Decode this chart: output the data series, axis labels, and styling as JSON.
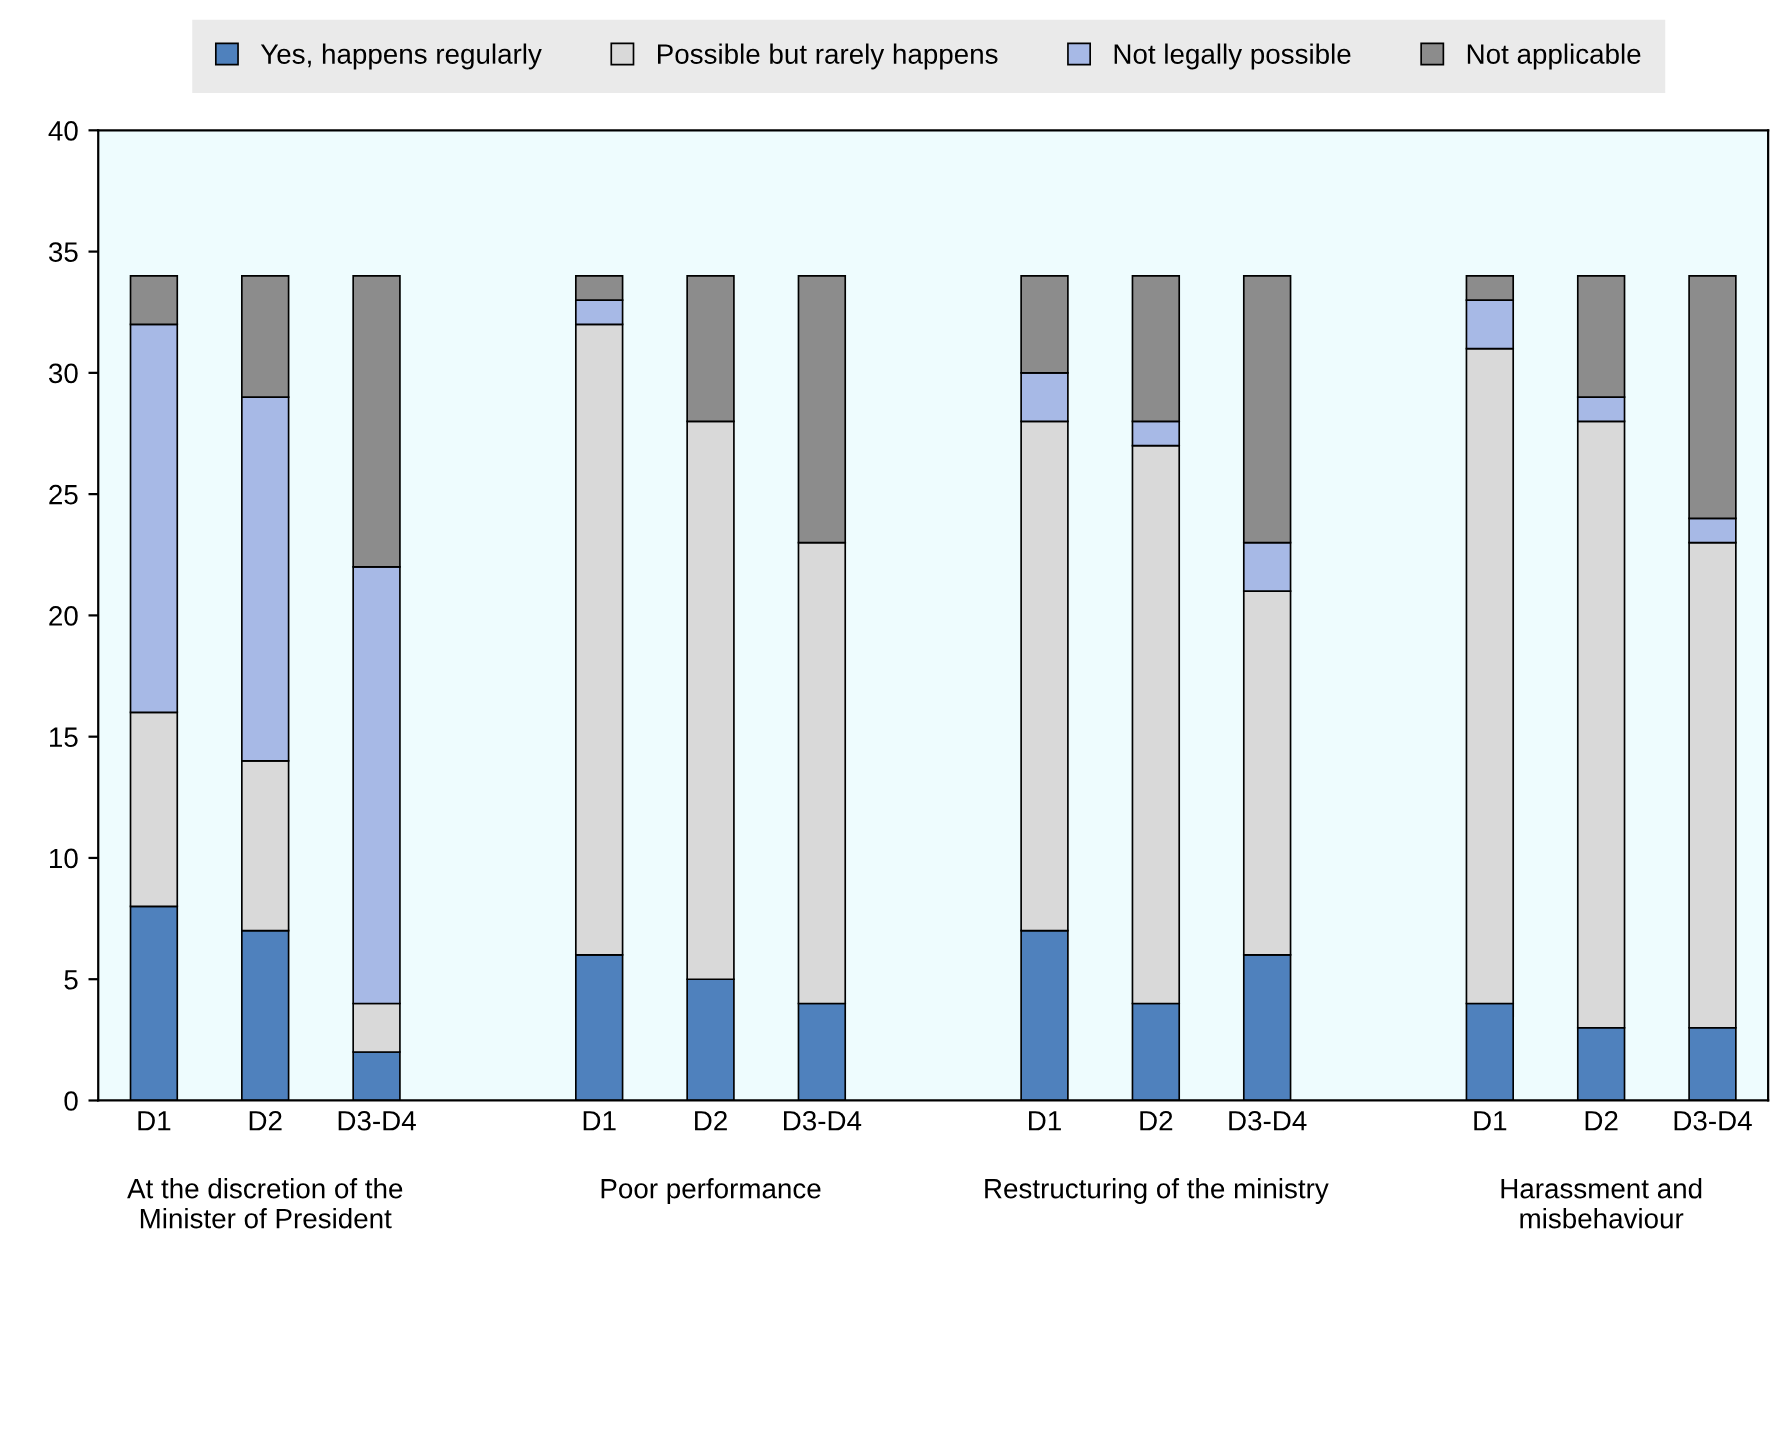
{
  "chart_data": {
    "type": "bar",
    "stacked": true,
    "categories": [
      "D1",
      "D2",
      "D3-D4",
      null,
      "D1",
      "D2",
      "D3-D4",
      null,
      "D1",
      "D2",
      "D3-D4",
      null,
      "D1",
      "D2",
      "D3-D4"
    ],
    "series": [
      {
        "name": "Yes, happens regularly",
        "color": "#4f81bd",
        "values": [
          8,
          7,
          2,
          null,
          6,
          5,
          4,
          null,
          7,
          4,
          6,
          null,
          4,
          3,
          3
        ]
      },
      {
        "name": "Possible but rarely happens",
        "color": "#d9d9d9",
        "values": [
          8,
          7,
          2,
          null,
          26,
          23,
          19,
          null,
          21,
          23,
          15,
          null,
          27,
          25,
          20
        ]
      },
      {
        "name": "Not legally possible",
        "color": "#a7b9e6",
        "values": [
          16,
          15,
          18,
          null,
          1,
          0,
          0,
          null,
          2,
          1,
          2,
          null,
          2,
          1,
          1
        ]
      },
      {
        "name": "Not applicable",
        "color": "#8c8c8c",
        "values": [
          2,
          5,
          12,
          null,
          1,
          6,
          11,
          null,
          4,
          6,
          11,
          null,
          1,
          5,
          10
        ]
      }
    ],
    "ylim": [
      0,
      40
    ],
    "yticks": [
      0,
      5,
      10,
      15,
      20,
      25,
      30,
      35,
      40
    ],
    "grid": false,
    "legend": "top",
    "annotations": [
      "At the discretion of the Minister of President",
      "Poor performance",
      "Restructuring of the ministry",
      "Harassment and misbehaviour"
    ]
  }
}
